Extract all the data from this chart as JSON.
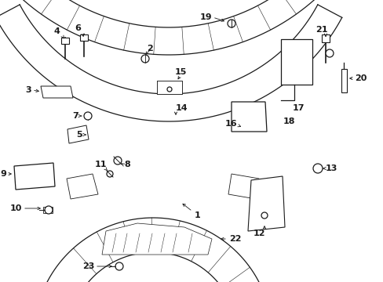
{
  "bg_color": "#ffffff",
  "line_color": "#1a1a1a",
  "lw": 0.9,
  "fs": 8.0
}
